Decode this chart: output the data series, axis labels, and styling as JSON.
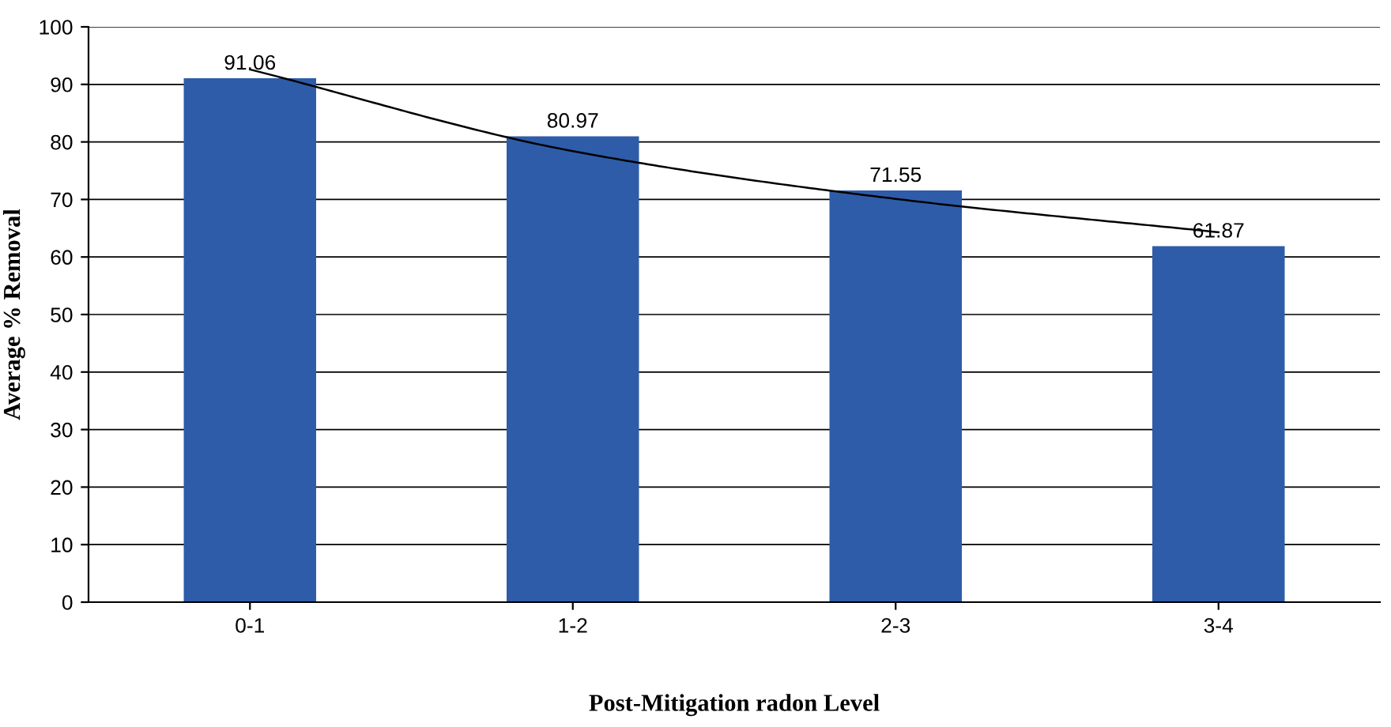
{
  "chart_data": {
    "type": "bar",
    "xlabel": "Post-Mitigation radon Level",
    "ylabel": "Average % Removal",
    "categories": [
      "0-1",
      "1-2",
      "2-3",
      "3-4"
    ],
    "series": [
      {
        "color": "#2e5ca8",
        "values": [
          91.06,
          80.97,
          71.55,
          61.87
        ],
        "value_labels": [
          "91.06",
          "80.97",
          "71.55",
          "61.87"
        ]
      },
      {
        "type": "line",
        "color": "#000000",
        "values": [
          92.6,
          78.4,
          70.1,
          64.3
        ]
      }
    ],
    "ylim": [
      0,
      100
    ],
    "yticks": [
      0,
      10,
      20,
      30,
      40,
      50,
      60,
      70,
      80,
      90,
      100
    ],
    "grid": "y",
    "legend": false,
    "marker": "none"
  }
}
